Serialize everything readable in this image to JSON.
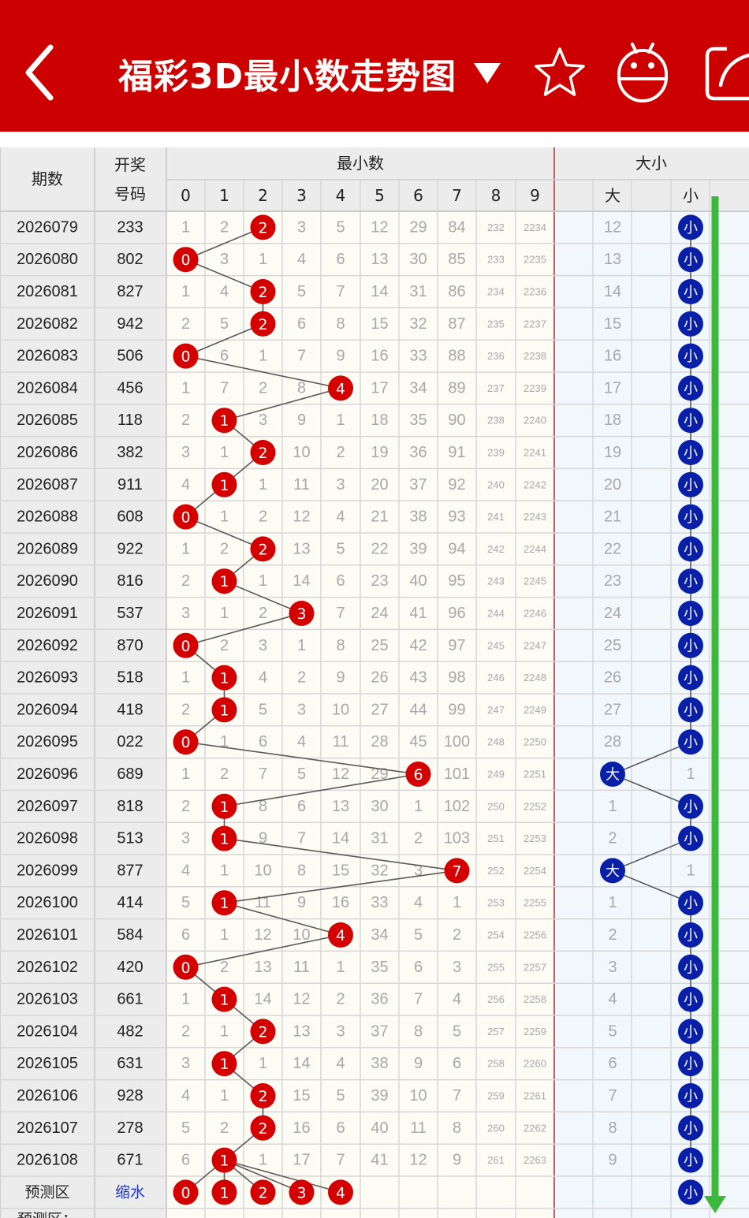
{
  "header": {
    "title": "福彩3D最小数走势图",
    "back_icon": "chevron-left-icon",
    "dropdown_icon": "caret-down-icon",
    "favorite_icon": "star-icon",
    "robot_icon": "robot-icon",
    "share_icon": "share-icon"
  },
  "table": {
    "col_period": "期数",
    "col_draw_line1": "开奖",
    "col_draw_line2": "号码",
    "group_min": "最小数",
    "group_size": "大小",
    "digits": [
      "0",
      "1",
      "2",
      "3",
      "4",
      "5",
      "6",
      "7",
      "8",
      "9"
    ],
    "size_big": "大",
    "size_small": "小",
    "rows": [
      {
        "period": "2026079",
        "draw": "233",
        "cells": [
          "1",
          "2",
          "2",
          "3",
          "5",
          "12",
          "29",
          "84",
          "232",
          "2234"
        ],
        "big": "12",
        "small": "小",
        "min": 2,
        "hit": "small"
      },
      {
        "period": "2026080",
        "draw": "802",
        "cells": [
          "0",
          "3",
          "1",
          "4",
          "6",
          "13",
          "30",
          "85",
          "233",
          "2235"
        ],
        "big": "13",
        "small": "小",
        "min": 0,
        "hit": "small"
      },
      {
        "period": "2026081",
        "draw": "827",
        "cells": [
          "1",
          "4",
          "2",
          "5",
          "7",
          "14",
          "31",
          "86",
          "234",
          "2236"
        ],
        "big": "14",
        "small": "小",
        "min": 2,
        "hit": "small"
      },
      {
        "period": "2026082",
        "draw": "942",
        "cells": [
          "2",
          "5",
          "2",
          "6",
          "8",
          "15",
          "32",
          "87",
          "235",
          "2237"
        ],
        "big": "15",
        "small": "小",
        "min": 2,
        "hit": "small"
      },
      {
        "period": "2026083",
        "draw": "506",
        "cells": [
          "0",
          "6",
          "1",
          "7",
          "9",
          "16",
          "33",
          "88",
          "236",
          "2238"
        ],
        "big": "16",
        "small": "小",
        "min": 0,
        "hit": "small"
      },
      {
        "period": "2026084",
        "draw": "456",
        "cells": [
          "1",
          "7",
          "2",
          "8",
          "4",
          "17",
          "34",
          "89",
          "237",
          "2239"
        ],
        "big": "17",
        "small": "小",
        "min": 4,
        "hit": "small"
      },
      {
        "period": "2026085",
        "draw": "118",
        "cells": [
          "2",
          "1",
          "3",
          "9",
          "1",
          "18",
          "35",
          "90",
          "238",
          "2240"
        ],
        "big": "18",
        "small": "小",
        "min": 1,
        "hit": "small"
      },
      {
        "period": "2026086",
        "draw": "382",
        "cells": [
          "3",
          "1",
          "2",
          "10",
          "2",
          "19",
          "36",
          "91",
          "239",
          "2241"
        ],
        "big": "19",
        "small": "小",
        "min": 2,
        "hit": "small"
      },
      {
        "period": "2026087",
        "draw": "911",
        "cells": [
          "4",
          "1",
          "1",
          "11",
          "3",
          "20",
          "37",
          "92",
          "240",
          "2242"
        ],
        "big": "20",
        "small": "小",
        "min": 1,
        "hit": "small"
      },
      {
        "period": "2026088",
        "draw": "608",
        "cells": [
          "0",
          "1",
          "2",
          "12",
          "4",
          "21",
          "38",
          "93",
          "241",
          "2243"
        ],
        "big": "21",
        "small": "小",
        "min": 0,
        "hit": "small"
      },
      {
        "period": "2026089",
        "draw": "922",
        "cells": [
          "1",
          "2",
          "2",
          "13",
          "5",
          "22",
          "39",
          "94",
          "242",
          "2244"
        ],
        "big": "22",
        "small": "小",
        "min": 2,
        "hit": "small"
      },
      {
        "period": "2026090",
        "draw": "816",
        "cells": [
          "2",
          "1",
          "1",
          "14",
          "6",
          "23",
          "40",
          "95",
          "243",
          "2245"
        ],
        "big": "23",
        "small": "小",
        "min": 1,
        "hit": "small"
      },
      {
        "period": "2026091",
        "draw": "537",
        "cells": [
          "3",
          "1",
          "2",
          "3",
          "7",
          "24",
          "41",
          "96",
          "244",
          "2246"
        ],
        "big": "24",
        "small": "小",
        "min": 3,
        "hit": "small"
      },
      {
        "period": "2026092",
        "draw": "870",
        "cells": [
          "0",
          "2",
          "3",
          "1",
          "8",
          "25",
          "42",
          "97",
          "245",
          "2247"
        ],
        "big": "25",
        "small": "小",
        "min": 0,
        "hit": "small"
      },
      {
        "period": "2026093",
        "draw": "518",
        "cells": [
          "1",
          "1",
          "4",
          "2",
          "9",
          "26",
          "43",
          "98",
          "246",
          "2248"
        ],
        "big": "26",
        "small": "小",
        "min": 1,
        "hit": "small"
      },
      {
        "period": "2026094",
        "draw": "418",
        "cells": [
          "2",
          "1",
          "5",
          "3",
          "10",
          "27",
          "44",
          "99",
          "247",
          "2249"
        ],
        "big": "27",
        "small": "小",
        "min": 1,
        "hit": "small"
      },
      {
        "period": "2026095",
        "draw": "022",
        "cells": [
          "0",
          "1",
          "6",
          "4",
          "11",
          "28",
          "45",
          "100",
          "248",
          "2250"
        ],
        "big": "28",
        "small": "小",
        "min": 0,
        "hit": "small"
      },
      {
        "period": "2026096",
        "draw": "689",
        "cells": [
          "1",
          "2",
          "7",
          "5",
          "12",
          "29",
          "6",
          "101",
          "249",
          "2251"
        ],
        "big": "大",
        "small": "1",
        "min": 6,
        "hit": "big"
      },
      {
        "period": "2026097",
        "draw": "818",
        "cells": [
          "2",
          "1",
          "8",
          "6",
          "13",
          "30",
          "1",
          "102",
          "250",
          "2252"
        ],
        "big": "1",
        "small": "小",
        "min": 1,
        "hit": "small"
      },
      {
        "period": "2026098",
        "draw": "513",
        "cells": [
          "3",
          "1",
          "9",
          "7",
          "14",
          "31",
          "2",
          "103",
          "251",
          "2253"
        ],
        "big": "2",
        "small": "小",
        "min": 1,
        "hit": "small"
      },
      {
        "period": "2026099",
        "draw": "877",
        "cells": [
          "4",
          "1",
          "10",
          "8",
          "15",
          "32",
          "3",
          "7",
          "252",
          "2254"
        ],
        "big": "大",
        "small": "1",
        "min": 7,
        "hit": "big"
      },
      {
        "period": "2026100",
        "draw": "414",
        "cells": [
          "5",
          "1",
          "11",
          "9",
          "16",
          "33",
          "4",
          "1",
          "253",
          "2255"
        ],
        "big": "1",
        "small": "小",
        "min": 1,
        "hit": "small"
      },
      {
        "period": "2026101",
        "draw": "584",
        "cells": [
          "6",
          "1",
          "12",
          "10",
          "4",
          "34",
          "5",
          "2",
          "254",
          "2256"
        ],
        "big": "2",
        "small": "小",
        "min": 4,
        "hit": "small"
      },
      {
        "period": "2026102",
        "draw": "420",
        "cells": [
          "0",
          "2",
          "13",
          "11",
          "1",
          "35",
          "6",
          "3",
          "255",
          "2257"
        ],
        "big": "3",
        "small": "小",
        "min": 0,
        "hit": "small"
      },
      {
        "period": "2026103",
        "draw": "661",
        "cells": [
          "1",
          "1",
          "14",
          "12",
          "2",
          "36",
          "7",
          "4",
          "256",
          "2258"
        ],
        "big": "4",
        "small": "小",
        "min": 1,
        "hit": "small"
      },
      {
        "period": "2026104",
        "draw": "482",
        "cells": [
          "2",
          "1",
          "2",
          "13",
          "3",
          "37",
          "8",
          "5",
          "257",
          "2259"
        ],
        "big": "5",
        "small": "小",
        "min": 2,
        "hit": "small"
      },
      {
        "period": "2026105",
        "draw": "631",
        "cells": [
          "3",
          "1",
          "1",
          "14",
          "4",
          "38",
          "9",
          "6",
          "258",
          "2260"
        ],
        "big": "6",
        "small": "小",
        "min": 1,
        "hit": "small"
      },
      {
        "period": "2026106",
        "draw": "928",
        "cells": [
          "4",
          "1",
          "2",
          "15",
          "5",
          "39",
          "10",
          "7",
          "259",
          "2261"
        ],
        "big": "7",
        "small": "小",
        "min": 2,
        "hit": "small"
      },
      {
        "period": "2026107",
        "draw": "278",
        "cells": [
          "5",
          "2",
          "2",
          "16",
          "6",
          "40",
          "11",
          "8",
          "260",
          "2262"
        ],
        "big": "8",
        "small": "小",
        "min": 2,
        "hit": "small"
      },
      {
        "period": "2026108",
        "draw": "671",
        "cells": [
          "6",
          "1",
          "1",
          "17",
          "7",
          "41",
          "12",
          "9",
          "261",
          "2263"
        ],
        "big": "9",
        "small": "小",
        "min": 1,
        "hit": "small"
      }
    ],
    "forecast": {
      "label": "预测区",
      "action": "缩水",
      "balls": [
        "0",
        "1",
        "2",
        "3",
        "4"
      ],
      "size": "小"
    },
    "forecast_next_label": "预测区："
  },
  "colors": {
    "header_bg": "#cd0000",
    "ball_red": "#d40000",
    "ball_blue": "#0a1fa8",
    "trend_line": "#5a5a5a",
    "arrow_green": "#3cb93c",
    "muted_text": "#a8a8a8",
    "dark_text": "#222222"
  }
}
